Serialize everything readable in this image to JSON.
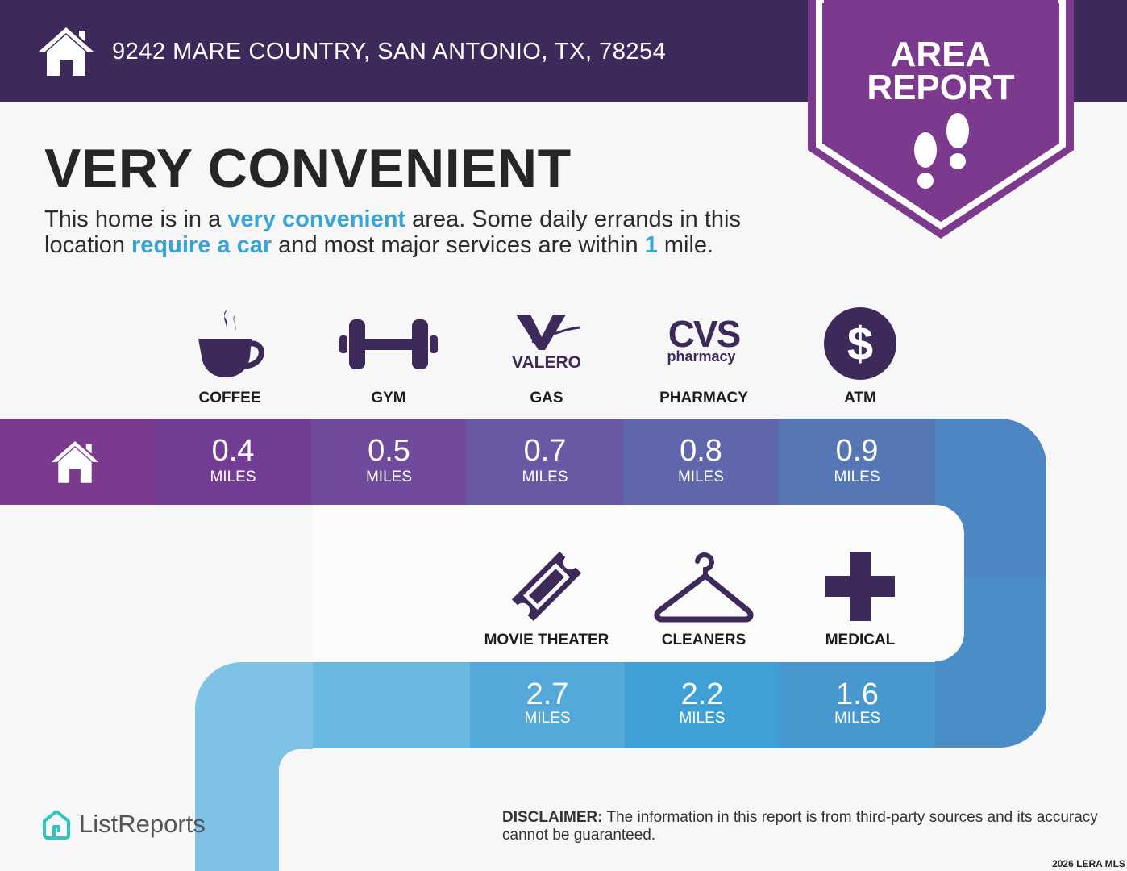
{
  "header": {
    "address": "9242 MARE COUNTRY, SAN ANTONIO, TX, 78254",
    "icon": "house-icon"
  },
  "badge": {
    "line1": "AREA",
    "line2": "REPORT",
    "icon": "footprints-icon"
  },
  "headline": "VERY CONVENIENT",
  "lead": {
    "p1": "This home is in a ",
    "h1": "very convenient",
    "p2": " area. Some daily errands in this location ",
    "h2": "require a car",
    "p3": " and most major services are within ",
    "h3": "1",
    "p4": " mile."
  },
  "row1": [
    {
      "label": "COFFEE",
      "icon": "coffee-cup-icon",
      "distance": "0.4",
      "unit": "MILES"
    },
    {
      "label": "GYM",
      "icon": "dumbbell-icon",
      "distance": "0.5",
      "unit": "MILES"
    },
    {
      "label": "GAS",
      "icon": "valero-logo-icon",
      "logo_text": "VALERO",
      "distance": "0.7",
      "unit": "MILES"
    },
    {
      "label": "PHARMACY",
      "icon": "cvs-pharmacy-logo-icon",
      "logo_text": "CVS",
      "logo_sub": "pharmacy",
      "distance": "0.8",
      "unit": "MILES"
    },
    {
      "label": "ATM",
      "icon": "dollar-icon",
      "distance": "0.9",
      "unit": "MILES"
    }
  ],
  "row2": [
    {
      "label": "MOVIE THEATER",
      "icon": "ticket-icon",
      "distance": "2.7",
      "unit": "MILES"
    },
    {
      "label": "CLEANERS",
      "icon": "hanger-icon",
      "distance": "2.2",
      "unit": "MILES"
    },
    {
      "label": "MEDICAL",
      "icon": "medical-cross-icon",
      "distance": "1.6",
      "unit": "MILES"
    }
  ],
  "colors": {
    "header": "#3d2a5a",
    "badge": "#7b3a8e",
    "accent": "#3aa3d8",
    "icon": "#3d2a5a"
  },
  "footer": {
    "logo_text": "ListReports",
    "disclaimer_label": "DISCLAIMER:",
    "disclaimer_text": " The information in this report is from third-party sources and its accuracy cannot be guaranteed.",
    "copyright": "2026 LERA MLS"
  }
}
